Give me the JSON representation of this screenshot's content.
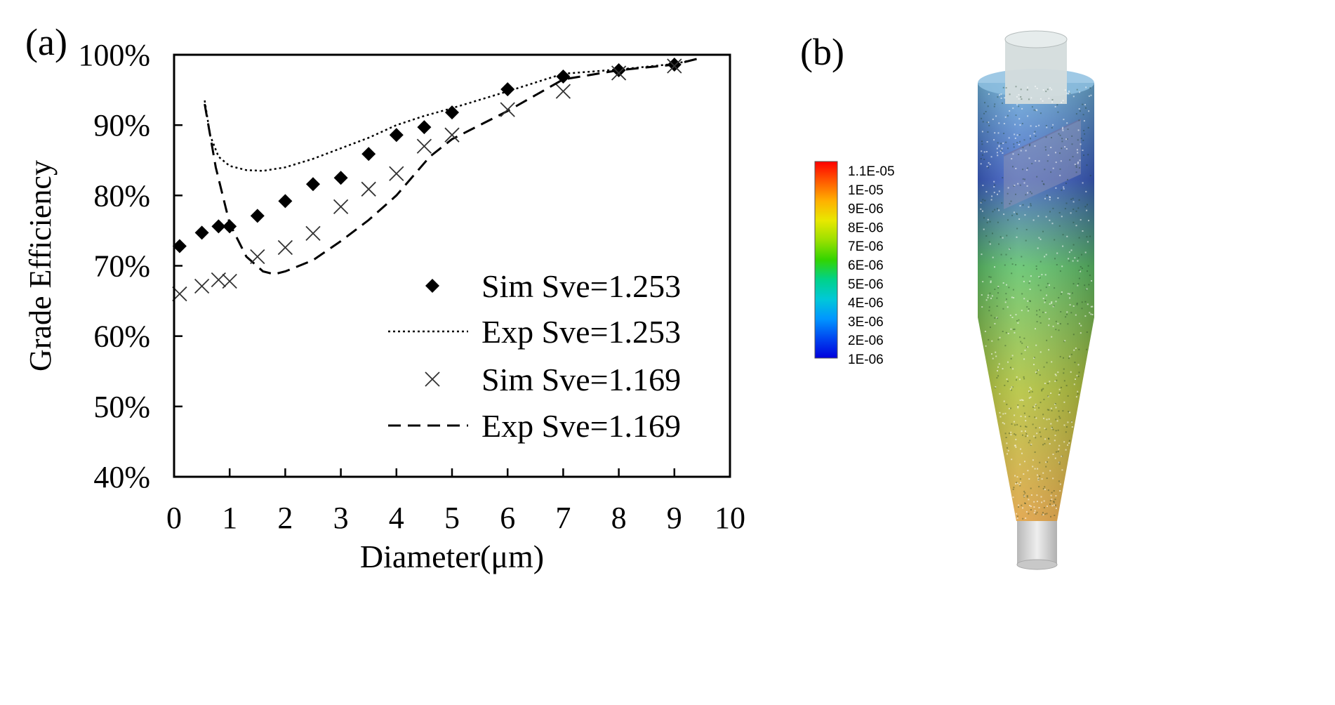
{
  "panels": {
    "a_label": "(a)",
    "b_label": "(b)"
  },
  "chart_data": {
    "type": "scatter",
    "xlabel": "Diameter(μm)",
    "ylabel": "Grade Efficiency",
    "xlim": [
      0,
      10
    ],
    "ylim": [
      40,
      100
    ],
    "x_ticks": [
      0,
      1,
      2,
      3,
      4,
      5,
      6,
      7,
      8,
      9,
      10
    ],
    "y_ticks": [
      40,
      50,
      60,
      70,
      80,
      90,
      100
    ],
    "y_tick_labels": [
      "40%",
      "50%",
      "60%",
      "70%",
      "80%",
      "90%",
      "100%"
    ],
    "grid": false,
    "legend_position": "lower-right",
    "series": [
      {
        "name": "Sim Sve=1.253",
        "marker": "diamond",
        "color": "#000000",
        "x": [
          0.1,
          0.5,
          0.8,
          1.0,
          1.5,
          2.0,
          2.5,
          3.0,
          3.5,
          4.0,
          4.5,
          5.0,
          6.0,
          7.0,
          8.0,
          9.0
        ],
        "y": [
          72.8,
          74.7,
          75.6,
          75.6,
          77.1,
          79.2,
          81.6,
          82.5,
          85.9,
          88.6,
          89.7,
          91.8,
          95.1,
          96.9,
          97.8,
          98.6
        ]
      },
      {
        "name": "Exp Sve=1.253",
        "line": "dotted",
        "color": "#000000",
        "x": [
          0.55,
          0.65,
          0.8,
          1.0,
          1.3,
          1.6,
          2.0,
          2.5,
          3.0,
          3.5,
          4.0,
          4.5,
          5.0,
          6.0,
          7.0,
          8.0,
          9.0,
          9.4
        ],
        "y": [
          93.5,
          88.5,
          85.5,
          84.2,
          83.6,
          83.5,
          84.0,
          85.2,
          86.7,
          88.2,
          90.0,
          91.3,
          92.4,
          94.8,
          97.3,
          97.9,
          98.7,
          99.4
        ]
      },
      {
        "name": "Sim Sve=1.169",
        "marker": "x",
        "color": "#000000",
        "x": [
          0.1,
          0.5,
          0.8,
          1.0,
          1.5,
          2.0,
          2.5,
          3.0,
          3.5,
          4.0,
          4.5,
          5.0,
          6.0,
          7.0,
          8.0,
          9.0
        ],
        "y": [
          66.0,
          67.1,
          68.0,
          67.8,
          71.3,
          72.6,
          74.6,
          78.4,
          80.9,
          83.1,
          87.0,
          88.6,
          92.2,
          94.8,
          97.4,
          98.4
        ]
      },
      {
        "name": "Exp Sve=1.169",
        "line": "dashed",
        "color": "#000000",
        "x": [
          0.55,
          0.75,
          1.0,
          1.3,
          1.6,
          1.8,
          2.0,
          2.5,
          3.0,
          3.5,
          4.0,
          4.6,
          5.0,
          6.0,
          7.0,
          8.0,
          9.0,
          9.4
        ],
        "y": [
          93.0,
          84.0,
          76.0,
          71.3,
          69.2,
          68.8,
          69.2,
          70.8,
          73.5,
          76.5,
          80.0,
          85.5,
          88.0,
          92.0,
          96.5,
          97.8,
          98.6,
          99.4
        ]
      }
    ]
  },
  "colorbar": {
    "labels": [
      "1.1E-05",
      "1E-05",
      "9E-06",
      "8E-06",
      "7E-06",
      "6E-06",
      "5E-06",
      "4E-06",
      "3E-06",
      "2E-06",
      "1E-06"
    ],
    "colors": [
      "#ff0000",
      "#ff5a00",
      "#ffb000",
      "#e8e800",
      "#9be000",
      "#33d400",
      "#00d28a",
      "#00c8d8",
      "#0096ff",
      "#0046f0",
      "#0000dc"
    ]
  },
  "cyclone_colors": {
    "top": "#6fb0d8",
    "vortex": "#3d5fc4",
    "middle": "#5ec26a",
    "lower": "#b2c23a",
    "bottom": "#e0a040",
    "outlet": "#d6d6d6"
  }
}
